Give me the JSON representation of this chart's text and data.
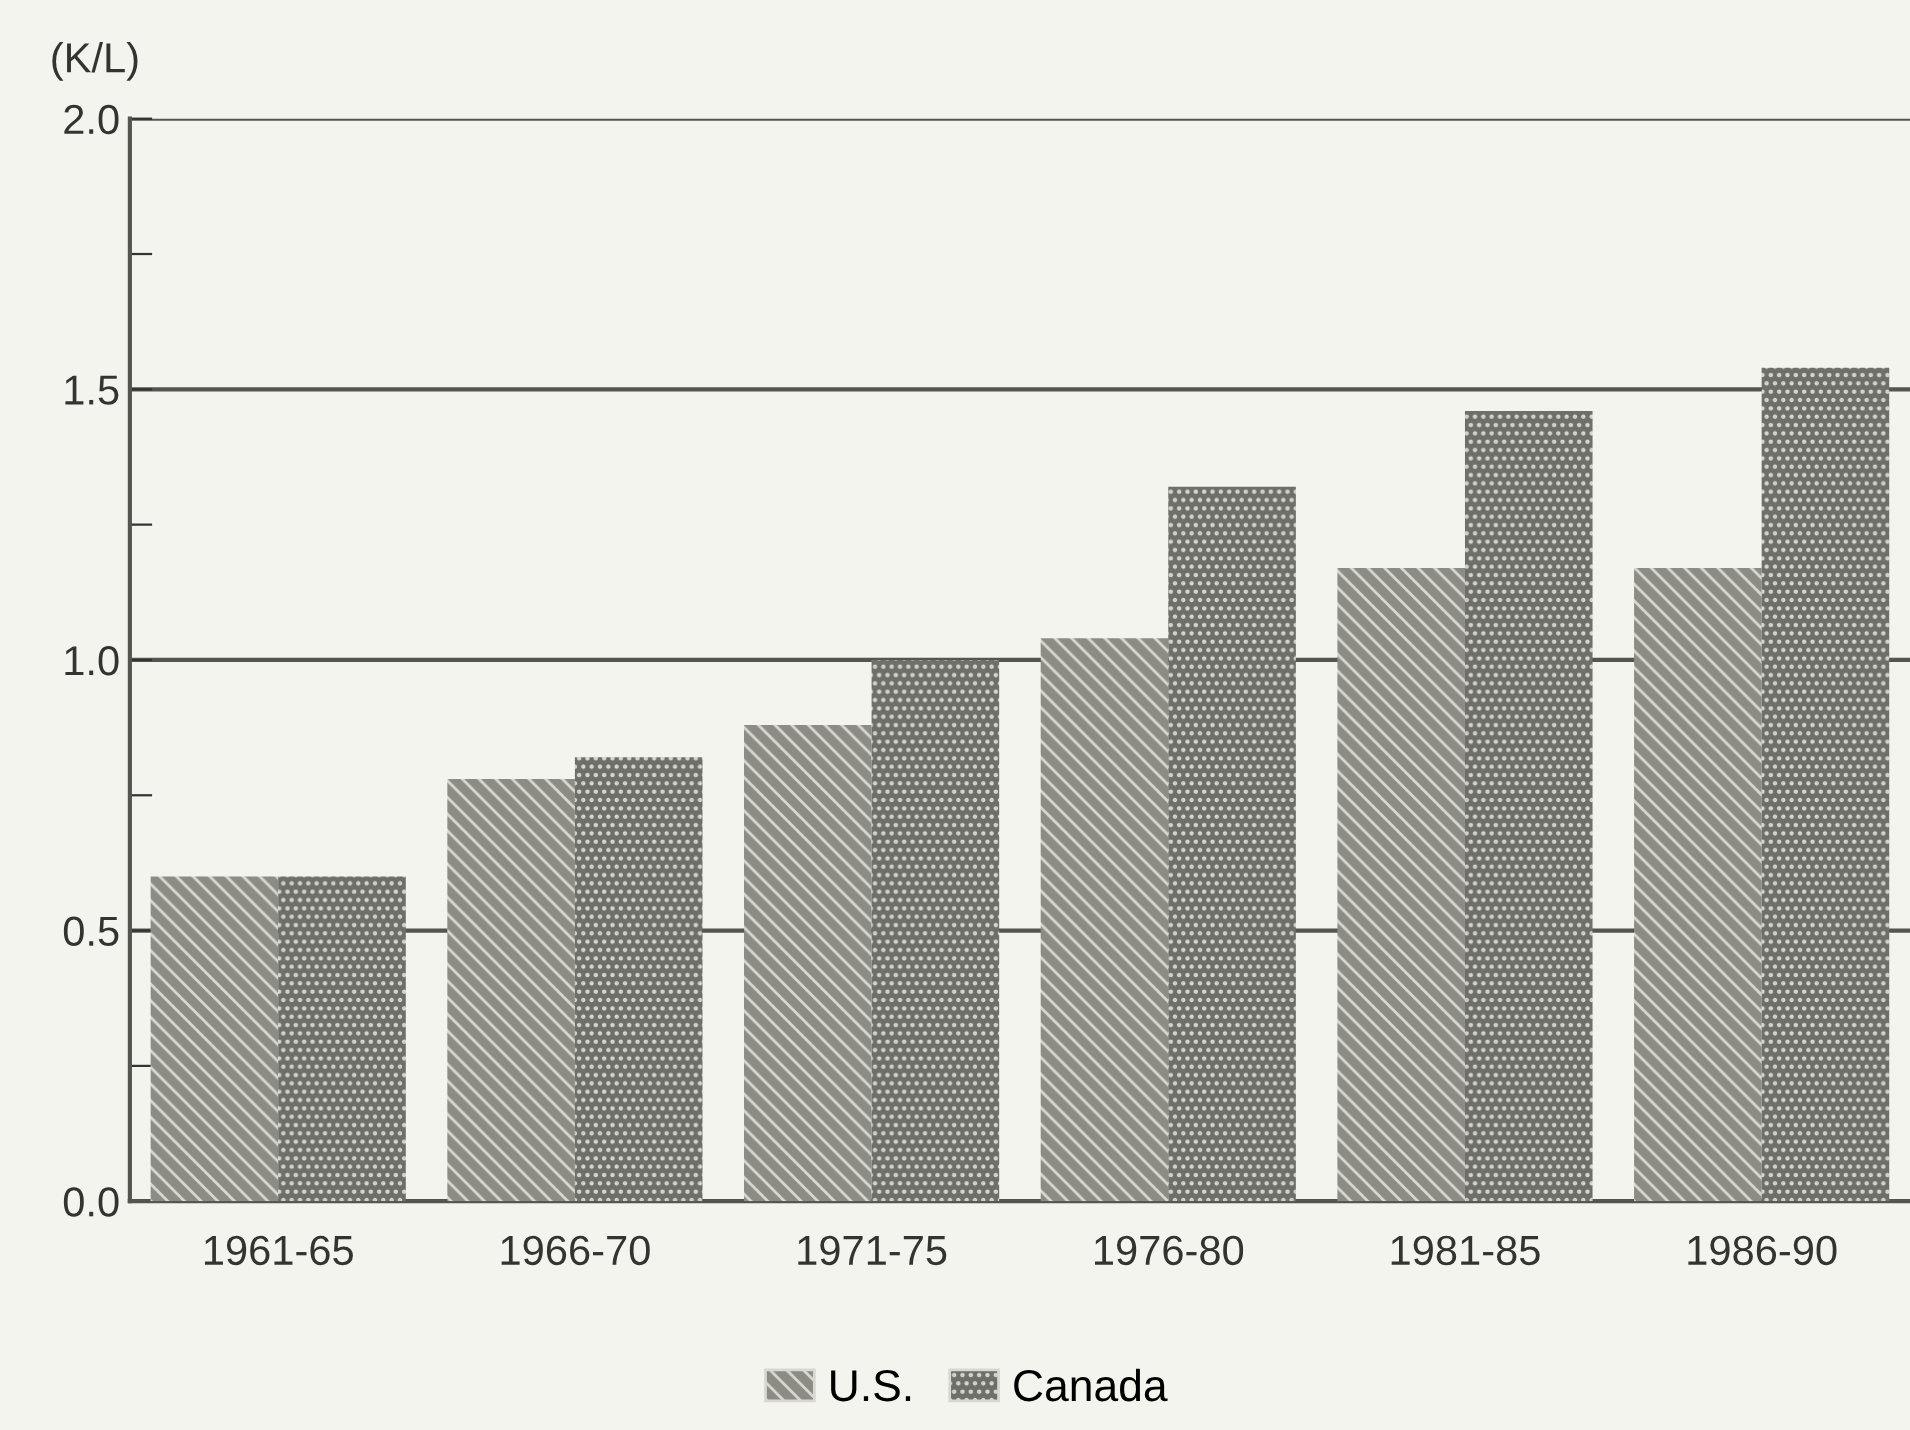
{
  "chart_data": {
    "type": "bar",
    "ylabel": "(K/L)",
    "categories": [
      "1961-65",
      "1966-70",
      "1971-75",
      "1976-80",
      "1981-85",
      "1986-90"
    ],
    "series": [
      {
        "name": "U.S.",
        "color": "#8c8c84",
        "values": [
          0.6,
          0.78,
          0.88,
          1.04,
          1.17,
          1.17
        ]
      },
      {
        "name": "Canada",
        "color": "#6f6f6a",
        "values": [
          0.6,
          0.82,
          1.0,
          1.32,
          1.46,
          1.54
        ]
      }
    ],
    "ylim": [
      0,
      2.0
    ],
    "yticks": [
      {
        "value": 0,
        "label": "0.0"
      },
      {
        "value": 0.25,
        "label": null
      },
      {
        "value": 0.5,
        "label": "0.5"
      },
      {
        "value": 0.75,
        "label": null
      },
      {
        "value": 1.0,
        "label": "1.0"
      },
      {
        "value": 1.25,
        "label": null
      },
      {
        "value": 1.5,
        "label": "1.5"
      },
      {
        "value": 1.75,
        "label": null
      },
      {
        "value": 2.0,
        "label": "2.0"
      }
    ],
    "grid": "y",
    "legend": "bottom"
  }
}
